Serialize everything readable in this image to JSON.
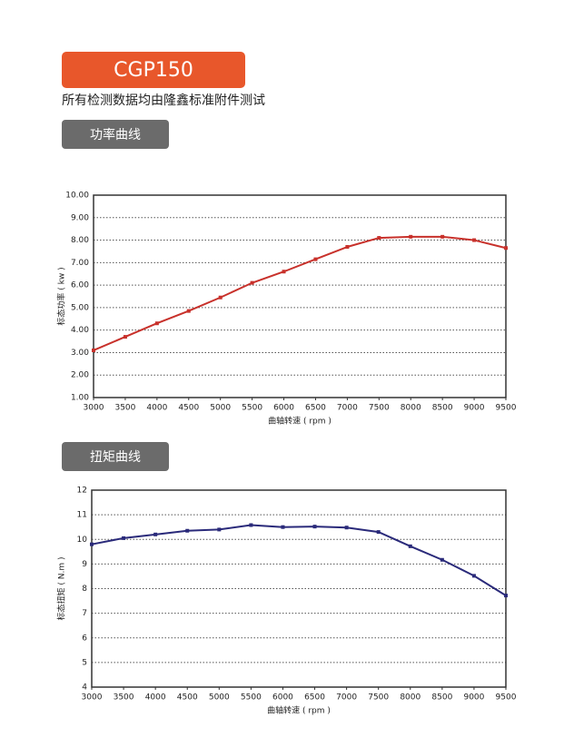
{
  "header": {
    "model": "CGP150",
    "subtitle": "所有检测数据均由隆鑫标准附件测试"
  },
  "chart_data": [
    {
      "type": "line",
      "title": "功率曲线",
      "x_label": "曲轴转速 ( rpm )",
      "y_label": "标态功率 ( kw )",
      "x": [
        3000,
        3500,
        4000,
        4500,
        5000,
        5500,
        6000,
        6500,
        7000,
        7500,
        8000,
        8500,
        9000,
        9500
      ],
      "xlim": [
        3000,
        9500
      ],
      "xticks": [
        3000,
        3500,
        4000,
        4500,
        5000,
        5500,
        6000,
        6500,
        7000,
        7500,
        8000,
        8500,
        9000,
        9500
      ],
      "ylim": [
        1,
        10
      ],
      "yticks": [
        {
          "value": 1,
          "label": "1.00"
        },
        {
          "value": 2,
          "label": "2.00"
        },
        {
          "value": 3,
          "label": "3.00"
        },
        {
          "value": 4,
          "label": "4.00"
        },
        {
          "value": 5,
          "label": "5.00"
        },
        {
          "value": 6,
          "label": "6.00"
        },
        {
          "value": 7,
          "label": "7.00"
        },
        {
          "value": 8,
          "label": "8.00"
        },
        {
          "value": 9,
          "label": "9.00"
        },
        {
          "value": 10,
          "label": "10.00"
        }
      ],
      "grid": true,
      "series": [
        {
          "color": "#c8312b",
          "values": [
            3.1,
            3.7,
            4.3,
            4.85,
            5.45,
            6.1,
            6.6,
            7.15,
            7.7,
            8.1,
            8.15,
            8.15,
            8.0,
            7.65
          ]
        }
      ]
    },
    {
      "type": "line",
      "title": "扭矩曲线",
      "x_label": "曲轴转速 ( rpm )",
      "y_label": "标态扭矩 ( N.m )",
      "x": [
        3000,
        3500,
        4000,
        4500,
        5000,
        5500,
        6000,
        6500,
        7000,
        7500,
        8000,
        8500,
        9000,
        9500
      ],
      "xlim": [
        3000,
        9500
      ],
      "xticks": [
        3000,
        3500,
        4000,
        4500,
        5000,
        5500,
        6000,
        6500,
        7000,
        7500,
        8000,
        8500,
        9000,
        9500
      ],
      "ylim": [
        4,
        12
      ],
      "yticks": [
        4,
        5,
        6,
        7,
        8,
        9,
        10,
        11,
        12
      ],
      "grid": true,
      "series": [
        {
          "color": "#2a2a7a",
          "values": [
            9.8,
            10.05,
            10.2,
            10.35,
            10.4,
            10.58,
            10.5,
            10.52,
            10.48,
            10.3,
            9.72,
            9.17,
            8.52,
            7.72
          ]
        }
      ]
    }
  ]
}
